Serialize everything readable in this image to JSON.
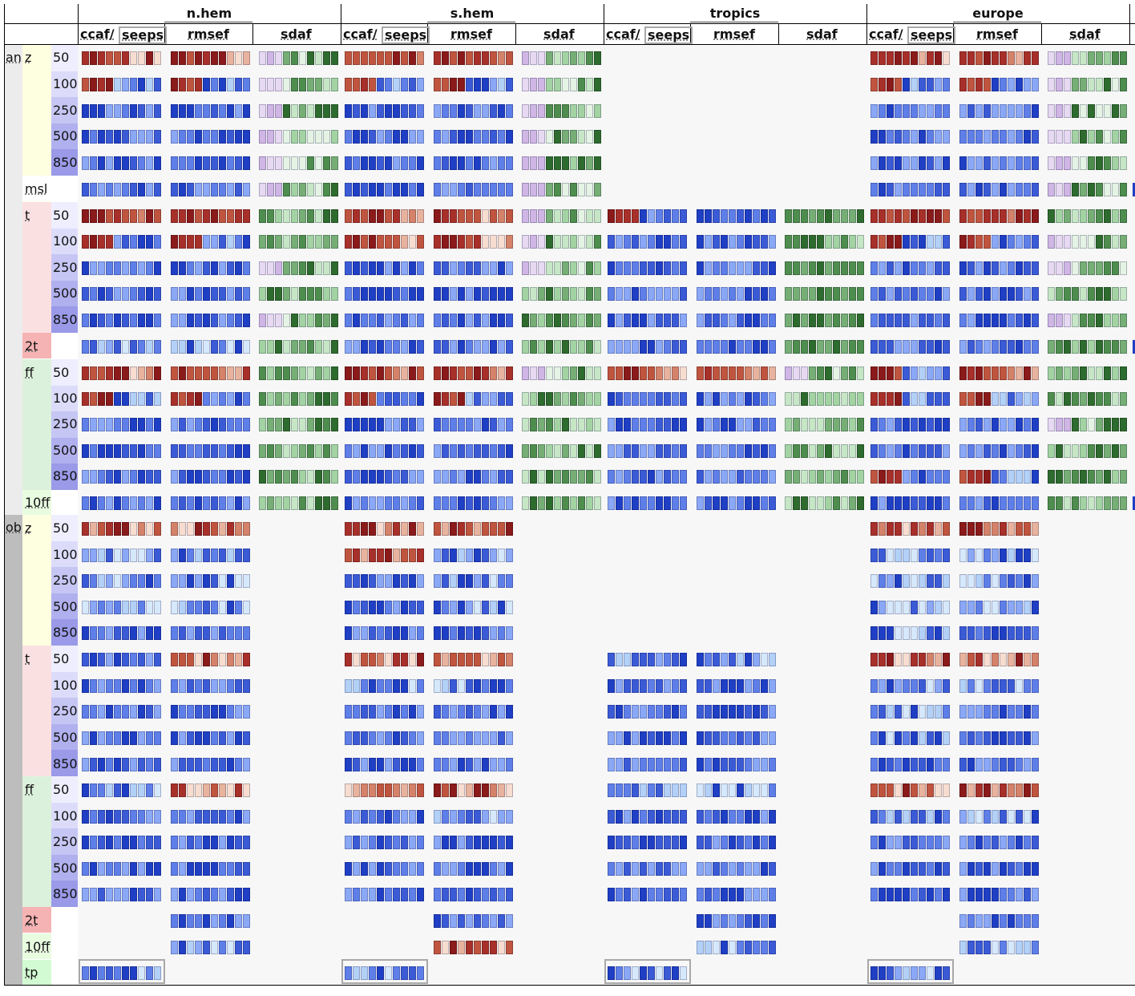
{
  "colors": {
    "red_dark": "#8b1a1a",
    "blue_dark": "#1f3fc4",
    "green_dark": "#2e6b2e"
  },
  "regions": [
    "n.hem",
    "s.hem",
    "tropics",
    "europe"
  ],
  "region_scores": [
    "ccaf/",
    "seeps",
    "rmsef",
    "sdaf"
  ],
  "sections": {
    "an": {
      "label": "an",
      "groups": [
        {
          "param": "z",
          "levels": [
            "50",
            "100",
            "250",
            "500",
            "850"
          ]
        },
        {
          "param": "msl",
          "levels": [
            ""
          ]
        },
        {
          "param": "t",
          "levels": [
            "50",
            "100",
            "250",
            "500",
            "850"
          ]
        },
        {
          "param": "2t",
          "levels": [
            ""
          ]
        },
        {
          "param": "ff",
          "levels": [
            "50",
            "100",
            "250",
            "500",
            "850"
          ]
        },
        {
          "param": "10ff",
          "levels": [
            ""
          ]
        }
      ]
    },
    "ob": {
      "label": "ob",
      "groups": [
        {
          "param": "z",
          "levels": [
            "50",
            "100",
            "250",
            "500",
            "850"
          ]
        },
        {
          "param": "t",
          "levels": [
            "50",
            "100",
            "250",
            "500",
            "850"
          ]
        },
        {
          "param": "ff",
          "levels": [
            "50",
            "100",
            "250",
            "500",
            "850"
          ]
        },
        {
          "param": "2t",
          "levels": [
            ""
          ]
        },
        {
          "param": "10ff",
          "levels": [
            ""
          ]
        },
        {
          "param": "tp",
          "levels": [
            ""
          ]
        }
      ]
    }
  }
}
